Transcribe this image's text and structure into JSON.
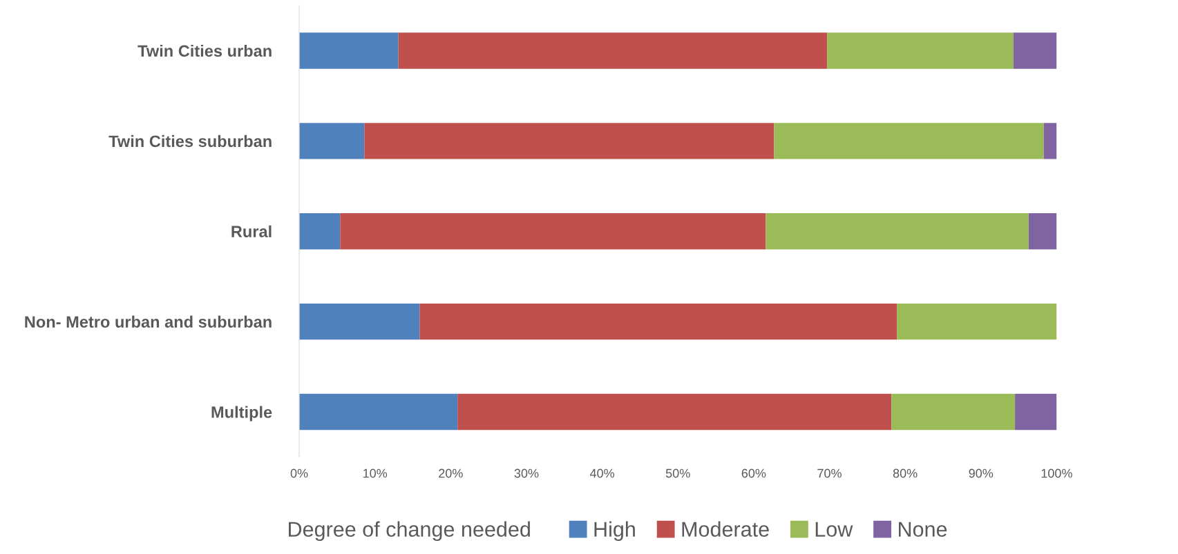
{
  "chart_data": {
    "type": "bar",
    "orientation": "horizontal",
    "stacked": true,
    "categories": [
      "Twin Cities urban",
      "Twin Cities suburban",
      "Rural",
      "Non- Metro urban and suburban",
      "Multiple"
    ],
    "series": [
      {
        "name": "High",
        "color": "#4f81bd",
        "values": [
          13.1,
          8.6,
          5.4,
          15.9,
          20.9
        ]
      },
      {
        "name": "Moderate",
        "color": "#c0504d",
        "values": [
          56.6,
          54.1,
          56.2,
          63.0,
          57.3
        ]
      },
      {
        "name": "Low",
        "color": "#9bbb59",
        "values": [
          24.6,
          35.6,
          34.7,
          21.1,
          16.3
        ]
      },
      {
        "name": "None",
        "color": "#8064a2",
        "values": [
          5.7,
          1.7,
          3.7,
          0,
          5.5
        ]
      }
    ],
    "xlim": [
      0,
      100
    ],
    "xticks": [
      {
        "value": 0,
        "label": "0%"
      },
      {
        "value": 10,
        "label": "10%"
      },
      {
        "value": 20,
        "label": "20%"
      },
      {
        "value": 30,
        "label": "30%"
      },
      {
        "value": 40,
        "label": "40%"
      },
      {
        "value": 50,
        "label": "50%"
      },
      {
        "value": 60,
        "label": "60%"
      },
      {
        "value": 70,
        "label": "70%"
      },
      {
        "value": 80,
        "label": "80%"
      },
      {
        "value": 90,
        "label": "90%"
      },
      {
        "value": 100,
        "label": "100%"
      }
    ],
    "legend_title": "Degree of change needed",
    "legend": "bottom",
    "grid": false
  }
}
